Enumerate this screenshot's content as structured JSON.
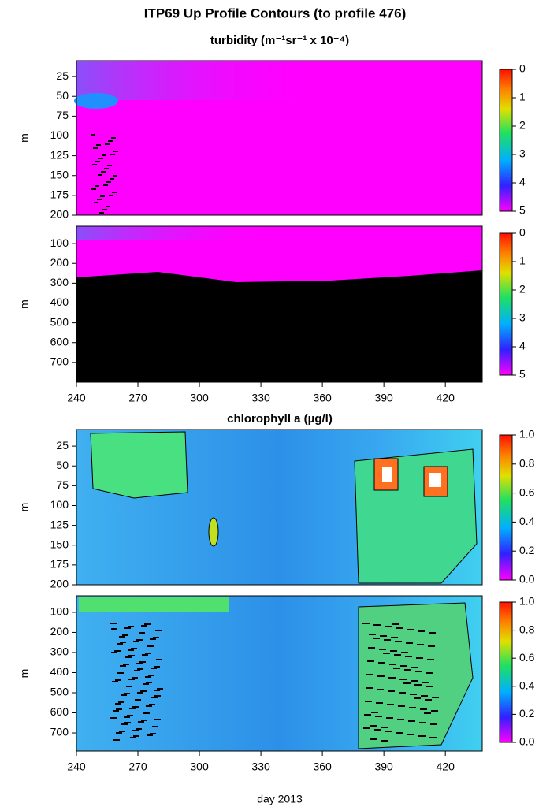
{
  "chart_data": {
    "type": "contour",
    "title": "ITP69 Up Profile Contours (to profile 476)",
    "xlabel": "day 2013",
    "xlim": [
      240,
      438
    ],
    "xticks": [
      240,
      270,
      300,
      330,
      360,
      390,
      420
    ],
    "sections": [
      {
        "title": "turbidity (m⁻¹sr⁻¹ x 10⁻⁴)",
        "colorbar_lim": [
          0,
          5
        ],
        "colorbar_ticks": [
          0,
          1,
          2,
          3,
          4,
          5
        ],
        "panels": [
          {
            "ylabel": "m",
            "ylim": [
              200,
              5
            ],
            "yticks": [
              25,
              50,
              75,
              100,
              125,
              150,
              175,
              200
            ]
          },
          {
            "ylabel": "m",
            "ylim": [
              800,
              12
            ],
            "yticks": [
              100,
              200,
              300,
              400,
              500,
              600,
              700
            ]
          }
        ]
      },
      {
        "title": "chlorophyll a (µg/l)",
        "colorbar_lim": [
          0,
          1
        ],
        "colorbar_ticks": [
          {
            "value": 0,
            "label": "0.0"
          },
          0.2,
          0.4,
          0.6,
          0.8,
          {
            "value": 1,
            "label": "1.0"
          }
        ],
        "panels": [
          {
            "ylabel": "m",
            "ylim": [
              200,
              4
            ],
            "yticks": [
              25,
              50,
              75,
              100,
              125,
              150,
              175,
              200
            ]
          },
          {
            "ylabel": "m",
            "ylim": [
              790,
              18
            ],
            "yticks": [
              100,
              200,
              300,
              400,
              500,
              600,
              700
            ]
          }
        ]
      }
    ]
  }
}
